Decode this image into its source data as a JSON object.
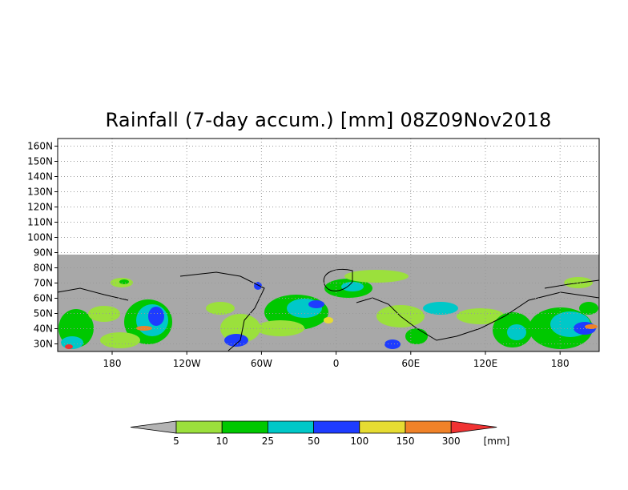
{
  "title": "Rainfall (7-day accum.) [mm] 08Z09Nov2018",
  "lat_labels": [
    "160N",
    "150N",
    "140N",
    "130N",
    "120N",
    "110N",
    "100N",
    "90N",
    "80N",
    "70N",
    "60N",
    "50N",
    "40N",
    "30N"
  ],
  "lon_labels": [
    "180",
    "120W",
    "60W",
    "0",
    "60E",
    "120E",
    "180"
  ],
  "legend": {
    "unit": "[mm]",
    "thresholds": [
      "5",
      "10",
      "25",
      "50",
      "100",
      "150",
      "300"
    ],
    "colors": [
      "#b4b4b4",
      "#9be03c",
      "#00c800",
      "#00c8c8",
      "#1e3cff",
      "#e6dc32",
      "#f08228",
      "#f03232"
    ]
  },
  "colors": {
    "land_ocean_mask": "#a8a8a8",
    "frame": "#000000",
    "grid": "#999999"
  }
}
